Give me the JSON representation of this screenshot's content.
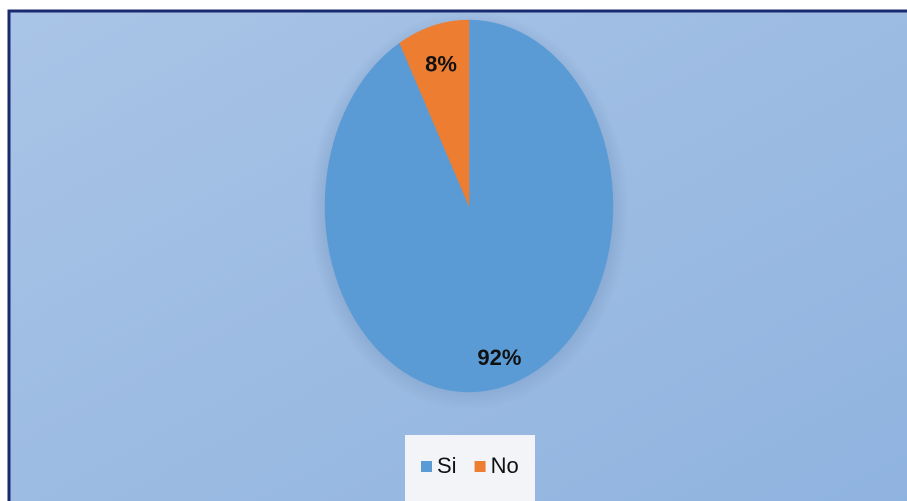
{
  "chart_data": {
    "type": "pie",
    "categories": [
      "Si",
      "No"
    ],
    "values": [
      92,
      8
    ],
    "value_labels": [
      "92%",
      "8%"
    ],
    "colors": [
      "#5b9bd5",
      "#ed7d31"
    ],
    "legend": "bottom"
  }
}
